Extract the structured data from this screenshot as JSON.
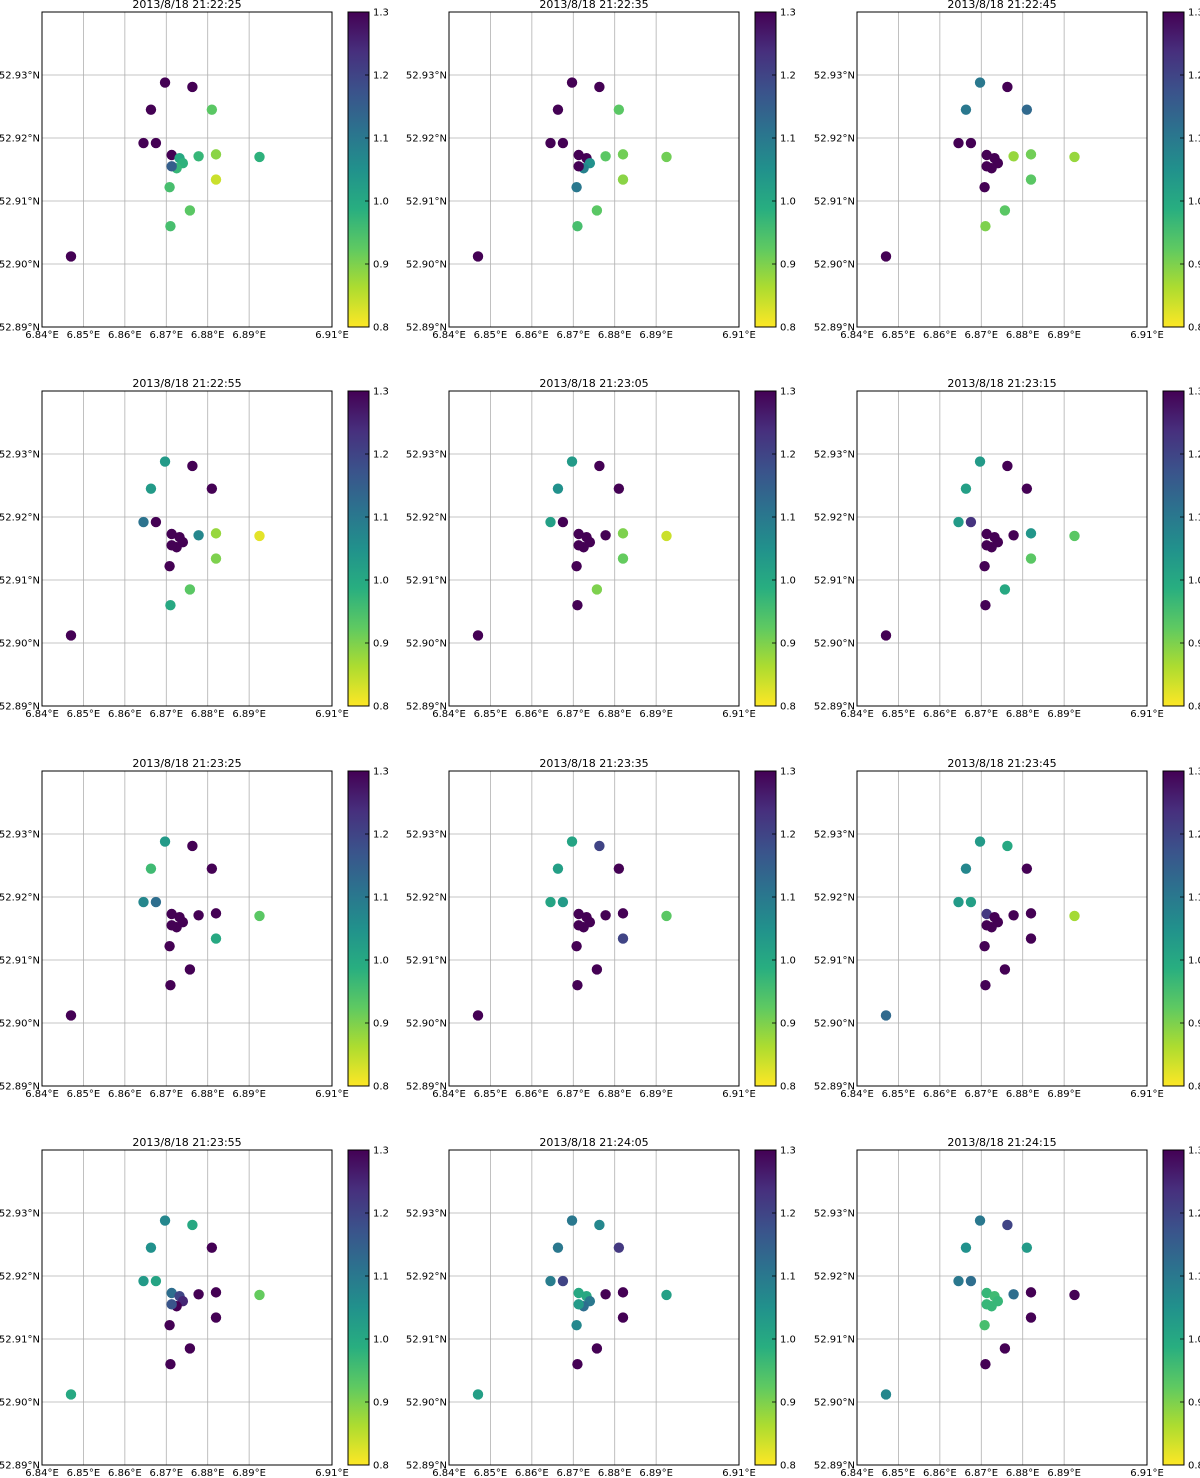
{
  "chart_data": {
    "type": "scatter",
    "xlim": [
      6.84,
      6.91
    ],
    "ylim": [
      52.89,
      52.94
    ],
    "x_ticks": [
      6.84,
      6.85,
      6.86,
      6.87,
      6.88,
      6.89,
      6.91
    ],
    "x_tick_labels": [
      "6.84°E",
      "6.85°E",
      "6.86°E",
      "6.87°E",
      "6.88°E",
      "6.89°E",
      "6.91°E"
    ],
    "y_ticks": [
      52.89,
      52.9,
      52.91,
      52.92,
      52.93
    ],
    "y_tick_labels": [
      "52.89°N",
      "52.90°N",
      "52.91°N",
      "52.92°N",
      "52.93°N"
    ],
    "grid": true,
    "colorbar": {
      "colormap": "viridis_r",
      "range": [
        0.8,
        1.3
      ],
      "ticks": [
        0.8,
        0.9,
        1.0,
        1.1,
        1.2,
        1.3
      ],
      "tick_labels": [
        "0.8",
        "0.9",
        "1.0",
        "1.1",
        "1.2",
        "1.3"
      ]
    },
    "stations": [
      {
        "lon": 6.847,
        "lat": 52.9012
      },
      {
        "lon": 6.8645,
        "lat": 52.9192
      },
      {
        "lon": 6.8675,
        "lat": 52.9192
      },
      {
        "lon": 6.8663,
        "lat": 52.9245
      },
      {
        "lon": 6.8697,
        "lat": 52.9288
      },
      {
        "lon": 6.8763,
        "lat": 52.9281
      },
      {
        "lon": 6.881,
        "lat": 52.9245
      },
      {
        "lon": 6.8713,
        "lat": 52.9173
      },
      {
        "lon": 6.8732,
        "lat": 52.9168
      },
      {
        "lon": 6.874,
        "lat": 52.916
      },
      {
        "lon": 6.8725,
        "lat": 52.9152
      },
      {
        "lon": 6.8713,
        "lat": 52.9155
      },
      {
        "lon": 6.8708,
        "lat": 52.9122
      },
      {
        "lon": 6.8778,
        "lat": 52.9171
      },
      {
        "lon": 6.882,
        "lat": 52.9174
      },
      {
        "lon": 6.882,
        "lat": 52.9134
      },
      {
        "lon": 6.8757,
        "lat": 52.9085
      },
      {
        "lon": 6.871,
        "lat": 52.906
      },
      {
        "lon": 6.8925,
        "lat": 52.917
      }
    ],
    "panels": [
      {
        "title": "2013/8/18 21:22:25",
        "values": [
          1.3,
          1.3,
          1.3,
          1.3,
          1.3,
          1.3,
          0.93,
          1.3,
          1.0,
          0.98,
          0.97,
          1.15,
          0.95,
          0.97,
          0.89,
          0.84,
          0.93,
          0.95,
          0.98
        ]
      },
      {
        "title": "2013/8/18 21:22:35",
        "values": [
          1.3,
          1.3,
          1.3,
          1.3,
          1.3,
          1.3,
          0.93,
          1.3,
          1.3,
          1.05,
          1.08,
          1.3,
          1.1,
          0.93,
          0.91,
          0.89,
          0.93,
          0.95,
          0.91
        ]
      },
      {
        "title": "2013/8/18 21:22:45",
        "values": [
          1.3,
          1.3,
          1.3,
          1.1,
          1.1,
          1.3,
          1.13,
          1.3,
          1.3,
          1.3,
          1.3,
          1.3,
          1.3,
          0.88,
          0.91,
          0.93,
          0.93,
          0.9,
          0.88
        ]
      },
      {
        "title": "2013/8/18 21:22:55",
        "values": [
          1.3,
          1.11,
          1.3,
          1.03,
          1.03,
          1.3,
          1.3,
          1.3,
          1.3,
          1.3,
          1.3,
          1.3,
          1.3,
          1.07,
          0.88,
          0.9,
          0.93,
          1.0,
          0.82
        ]
      },
      {
        "title": "2013/8/18 21:23:05",
        "values": [
          1.3,
          1.02,
          1.3,
          1.05,
          1.03,
          1.3,
          1.3,
          1.3,
          1.3,
          1.3,
          1.3,
          1.3,
          1.3,
          1.3,
          0.9,
          0.92,
          0.9,
          1.3,
          0.84
        ]
      },
      {
        "title": "2013/8/18 21:23:15",
        "values": [
          1.3,
          1.03,
          1.23,
          1.02,
          1.03,
          1.3,
          1.3,
          1.3,
          1.3,
          1.3,
          1.3,
          1.3,
          1.3,
          1.3,
          1.04,
          0.93,
          1.0,
          1.3,
          0.93
        ]
      },
      {
        "title": "2013/8/18 21:23:25",
        "values": [
          1.3,
          1.07,
          1.12,
          0.96,
          1.03,
          1.3,
          1.3,
          1.3,
          1.3,
          1.3,
          1.3,
          1.3,
          1.3,
          1.3,
          1.3,
          1.0,
          1.3,
          1.3,
          0.93
        ]
      },
      {
        "title": "2013/8/18 21:23:35",
        "values": [
          1.3,
          1.01,
          1.03,
          1.02,
          1.01,
          1.2,
          1.3,
          1.3,
          1.3,
          1.3,
          1.3,
          1.3,
          1.3,
          1.3,
          1.3,
          1.2,
          1.3,
          1.3,
          0.93
        ]
      },
      {
        "title": "2013/8/18 21:23:45",
        "values": [
          1.13,
          1.03,
          1.02,
          1.07,
          1.03,
          1.0,
          1.3,
          1.22,
          1.3,
          1.3,
          1.3,
          1.3,
          1.3,
          1.3,
          1.3,
          1.3,
          1.3,
          1.3,
          0.87
        ]
      },
      {
        "title": "2013/8/18 21:23:55",
        "values": [
          1.0,
          1.03,
          1.01,
          1.05,
          1.07,
          1.0,
          1.3,
          1.12,
          1.2,
          1.25,
          1.3,
          1.17,
          1.3,
          1.3,
          1.3,
          1.3,
          1.3,
          1.3,
          0.92
        ]
      },
      {
        "title": "2013/8/18 21:24:05",
        "values": [
          1.02,
          1.09,
          1.2,
          1.1,
          1.1,
          1.07,
          1.22,
          1.0,
          1.0,
          1.1,
          1.12,
          1.03,
          1.07,
          1.3,
          1.3,
          1.3,
          1.3,
          1.3,
          1.02
        ]
      },
      {
        "title": "2013/8/18 21:24:15",
        "values": [
          1.07,
          1.1,
          1.12,
          1.05,
          1.1,
          1.2,
          1.03,
          0.97,
          0.96,
          0.97,
          0.97,
          0.97,
          0.95,
          1.12,
          1.3,
          1.3,
          1.3,
          1.3,
          1.3
        ]
      }
    ]
  }
}
